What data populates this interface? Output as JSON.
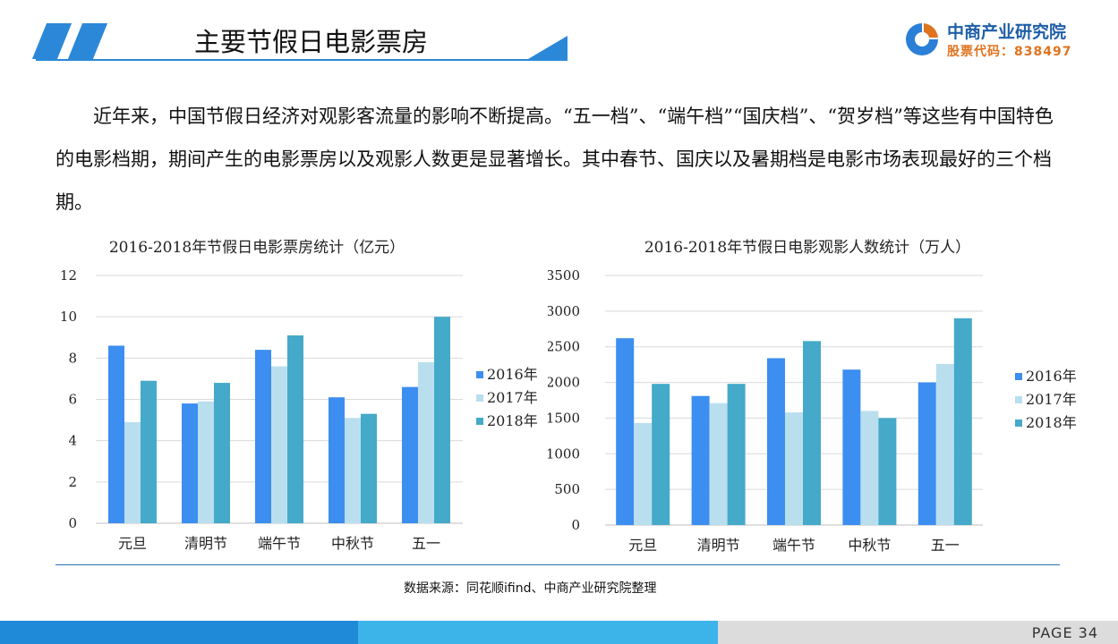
{
  "header": {
    "title": "主要节假日电影票房",
    "brand_name": "中商产业研究院",
    "brand_code": "股票代码：838497"
  },
  "intro": "近年来，中国节假日经济对观影客流量的影响不断提高。“五一档”、“端午档”“国庆档”、“贺岁档”等这些有中国特色的电影档期，期间产生的电影票房以及观影人数更是显著增长。其中春节、国庆以及暑期档是电影市场表现最好的三个档期。",
  "colors": {
    "s2016": "#3c8ef0",
    "s2017": "#b9dfee",
    "s2018": "#45a9c9",
    "accent": "#2b88d8",
    "grid": "#d9d9d9"
  },
  "chart_data": [
    {
      "type": "bar",
      "title": "2016-2018年节假日电影票房统计（亿元）",
      "categories": [
        "元旦",
        "清明节",
        "端午节",
        "中秋节",
        "五一"
      ],
      "series": [
        {
          "name": "2016年",
          "values": [
            8.6,
            5.8,
            8.4,
            6.1,
            6.6
          ]
        },
        {
          "name": "2017年",
          "values": [
            4.9,
            5.9,
            7.6,
            5.1,
            7.8
          ]
        },
        {
          "name": "2018年",
          "values": [
            6.9,
            6.8,
            9.1,
            5.3,
            10.0
          ]
        }
      ],
      "ylim": [
        0,
        12
      ],
      "yticks": [
        0,
        2,
        4,
        6,
        8,
        10,
        12
      ],
      "grid": true,
      "legend": "right"
    },
    {
      "type": "bar",
      "title": "2016-2018年节假日电影观影人数统计（万人）",
      "categories": [
        "元旦",
        "清明节",
        "端午节",
        "中秋节",
        "五一"
      ],
      "series": [
        {
          "name": "2016年",
          "values": [
            2620,
            1810,
            2340,
            2180,
            2000
          ]
        },
        {
          "name": "2017年",
          "values": [
            1430,
            1710,
            1580,
            1600,
            2260
          ]
        },
        {
          "name": "2018年",
          "values": [
            1980,
            1980,
            2580,
            1500,
            2900
          ]
        }
      ],
      "ylim": [
        0,
        3500
      ],
      "yticks": [
        0,
        500,
        1000,
        1500,
        2000,
        2500,
        3000,
        3500
      ],
      "grid": true,
      "legend": "right"
    }
  ],
  "source": "数据来源：同花顺ifind、中商产业研究院整理",
  "footer": {
    "page": "PAGE  34"
  }
}
